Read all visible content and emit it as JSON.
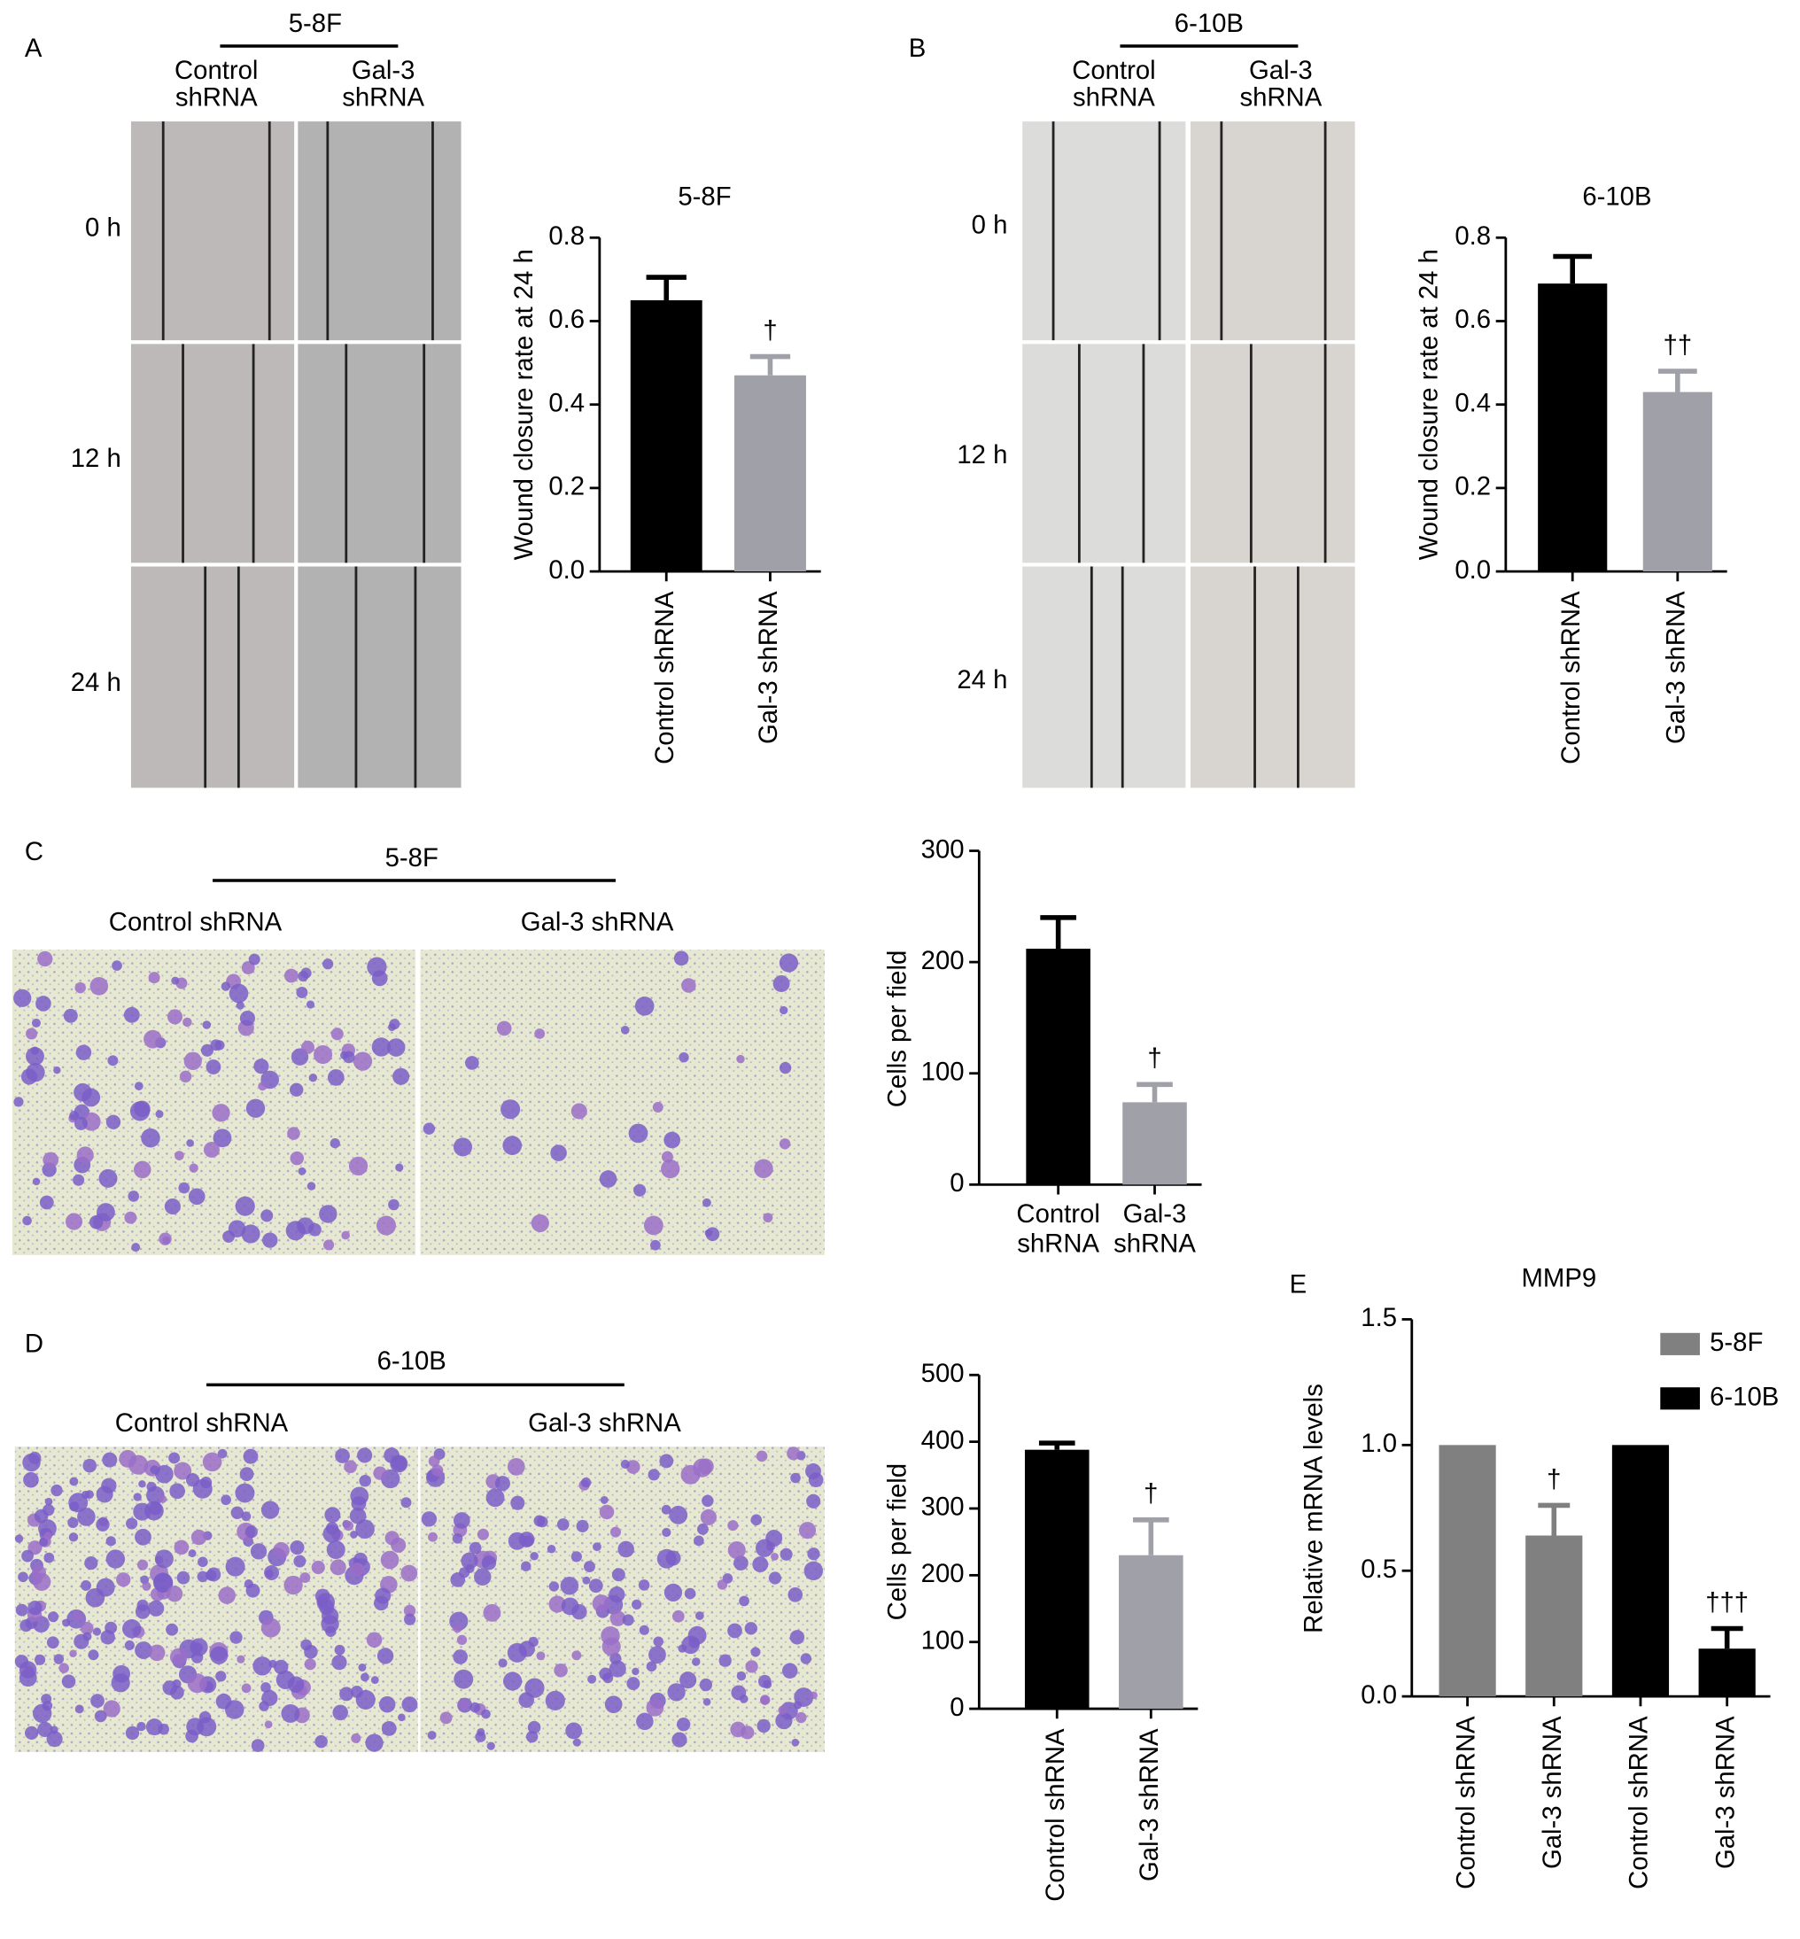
{
  "panel_labels": [
    "A",
    "B",
    "C",
    "D",
    "E"
  ],
  "micrographs": [
    {
      "cell_line": "5-8F",
      "groups": [
        [
          "Control",
          "shRNA"
        ],
        [
          "Gal-3",
          "shRNA"
        ]
      ],
      "times": [
        "0 h",
        "12 h",
        "24 h"
      ]
    },
    {
      "cell_line": "6-10B",
      "groups": [
        [
          "Control",
          "shRNA"
        ],
        [
          "Gal-3",
          "shRNA"
        ]
      ],
      "times": [
        "0 h",
        "12 h",
        "24 h"
      ]
    },
    {
      "cell_line": "5-8F",
      "groups": [
        "Control shRNA",
        "Gal-3 shRNA"
      ]
    },
    {
      "cell_line": "6-10B",
      "groups": [
        "Control shRNA",
        "Gal-3 shRNA"
      ]
    }
  ],
  "chart_data": [
    {
      "type": "bar",
      "title": "5-8F",
      "ylabel": "Wound closure rate at 24 h",
      "categories": [
        "Control shRNA",
        "Gal-3 shRNA"
      ],
      "values": [
        0.65,
        0.47
      ],
      "errors": [
        0.055,
        0.045
      ],
      "colors": [
        "#000000",
        "#a0a0a8"
      ],
      "significance": [
        null,
        "†"
      ],
      "ylim": [
        0,
        0.8
      ],
      "yticks": [
        {
          "value": 0,
          "label": "0.0"
        },
        0.2,
        0.4,
        0.6,
        0.8
      ]
    },
    {
      "type": "bar",
      "title": "6-10B",
      "ylabel": "Wound closure rate at 24 h",
      "categories": [
        "Control shRNA",
        "Gal-3 shRNA"
      ],
      "values": [
        0.69,
        0.43
      ],
      "errors": [
        0.065,
        0.05
      ],
      "colors": [
        "#000000",
        "#a0a0a8"
      ],
      "significance": [
        null,
        "††"
      ],
      "ylim": [
        0,
        0.8
      ],
      "yticks": [
        {
          "value": 0,
          "label": "0.0"
        },
        0.2,
        0.4,
        0.6,
        0.8
      ]
    },
    {
      "type": "bar",
      "ylabel": "Cells per field",
      "categories": [
        [
          "Control",
          "shRNA"
        ],
        [
          "Gal-3",
          "shRNA"
        ]
      ],
      "values": [
        212,
        74
      ],
      "errors": [
        28,
        16
      ],
      "colors": [
        "#000000",
        "#a0a0a8"
      ],
      "significance": [
        null,
        "†"
      ],
      "ylim": [
        0,
        300
      ],
      "yticks": [
        0,
        100,
        200,
        300
      ]
    },
    {
      "type": "bar",
      "ylabel": "Cells per field",
      "categories": [
        "Control shRNA",
        "Gal-3 shRNA"
      ],
      "values": [
        388,
        230
      ],
      "errors": [
        10,
        53
      ],
      "colors": [
        "#000000",
        "#a0a0a8"
      ],
      "significance": [
        null,
        "†"
      ],
      "ylim": [
        0,
        500
      ],
      "yticks": [
        0,
        100,
        200,
        300,
        400,
        500
      ]
    },
    {
      "type": "grouped_bar",
      "title": "MMP9",
      "ylabel": "Relative mRNA levels",
      "categories": [
        "Control shRNA",
        "Gal-3 shRNA",
        "Control shRNA",
        "Gal-3 shRNA"
      ],
      "series": [
        {
          "name": "5-8F",
          "color": "#808080",
          "values": [
            1.0,
            0.64,
            null,
            null
          ],
          "errors": [
            null,
            0.12,
            null,
            null
          ],
          "significance": [
            null,
            "†",
            null,
            null
          ]
        },
        {
          "name": "6-10B",
          "color": "#000000",
          "values": [
            null,
            null,
            1.0,
            0.19
          ],
          "errors": [
            null,
            null,
            null,
            0.08
          ],
          "significance": [
            null,
            null,
            null,
            "†††"
          ]
        }
      ],
      "legend": "upper right",
      "ylim": [
        0,
        1.5
      ],
      "yticks": [
        {
          "value": 0,
          "label": "0.0"
        },
        0.5,
        {
          "value": 1,
          "label": "1.0"
        },
        1.5
      ]
    }
  ]
}
